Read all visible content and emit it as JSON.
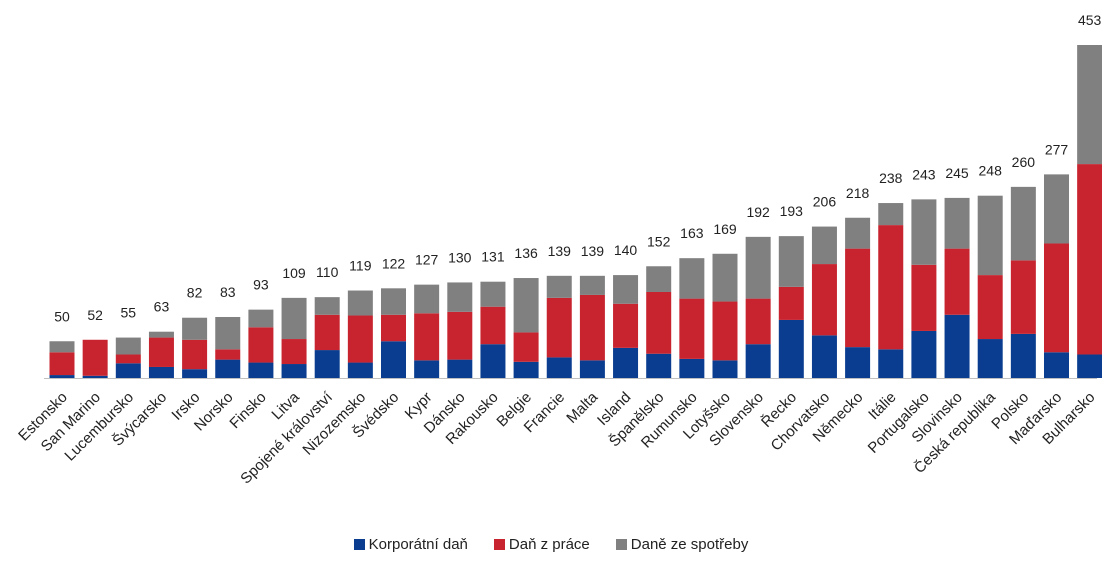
{
  "chart_data": {
    "type": "bar",
    "stacked": true,
    "title": "",
    "xlabel": "",
    "ylabel": "",
    "ylim": [
      0,
      453
    ],
    "grid": false,
    "legend_position": "bottom",
    "categories": [
      "Estonsko",
      "San Marino",
      "Lucembursko",
      "Švýcarsko",
      "Irsko",
      "Norsko",
      "Finsko",
      "Litva",
      "Spojené království",
      "Nizozemsko",
      "Švédsko",
      "Kypr",
      "Dánsko",
      "Rakousko",
      "Belgie",
      "Francie",
      "Malta",
      "Island",
      "Španělsko",
      "Rumunsko",
      "Lotyšsko",
      "Slovensko",
      "Řecko",
      "Chorvatsko",
      "Německo",
      "Itálie",
      "Portugalsko",
      "Slovinsko",
      "Česká republika",
      "Polsko",
      "Maďarsko",
      "Bulharsko"
    ],
    "totals": [
      50,
      52,
      55,
      63,
      82,
      83,
      93,
      109,
      110,
      119,
      122,
      127,
      130,
      131,
      136,
      139,
      139,
      140,
      152,
      163,
      169,
      192,
      193,
      206,
      218,
      238,
      243,
      245,
      248,
      260,
      277,
      453
    ],
    "series": [
      {
        "name": "Korporátní daň",
        "color": "#0a3d8f",
        "values": [
          4,
          3,
          20,
          15,
          12,
          25,
          21,
          19,
          38,
          21,
          50,
          24,
          25,
          46,
          22,
          28,
          24,
          41,
          33,
          26,
          24,
          46,
          79,
          58,
          42,
          39,
          64,
          86,
          53,
          60,
          35,
          32
        ]
      },
      {
        "name": "Daň z práce",
        "color": "#c8242f",
        "values": [
          31,
          49,
          12,
          40,
          40,
          14,
          48,
          34,
          48,
          64,
          36,
          64,
          65,
          51,
          40,
          81,
          89,
          60,
          84,
          82,
          80,
          62,
          45,
          97,
          134,
          169,
          90,
          90,
          87,
          100,
          148,
          259
        ]
      },
      {
        "name": "Daně ze spotřeby",
        "color": "#808080",
        "values": [
          15,
          0,
          23,
          8,
          30,
          44,
          24,
          56,
          24,
          34,
          36,
          39,
          40,
          34,
          74,
          30,
          26,
          39,
          35,
          55,
          65,
          84,
          69,
          51,
          42,
          30,
          89,
          69,
          108,
          100,
          94,
          162
        ]
      }
    ]
  }
}
